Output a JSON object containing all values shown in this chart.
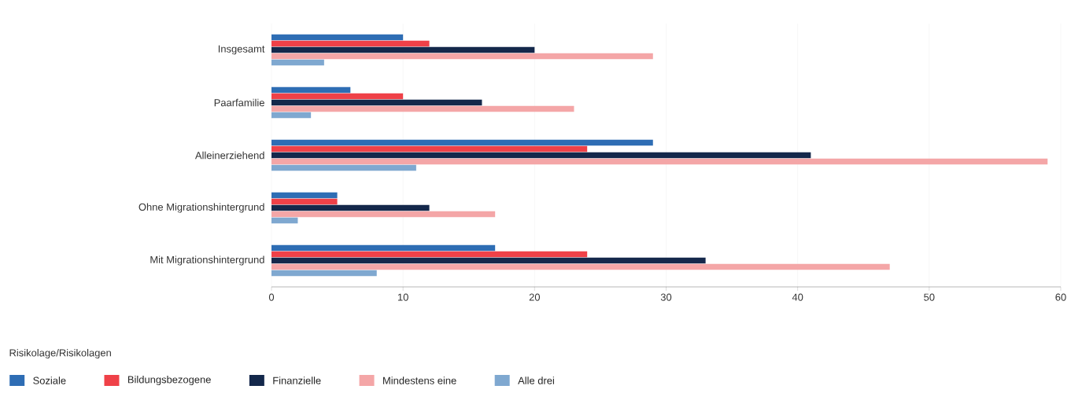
{
  "chart_data": {
    "type": "bar",
    "orientation": "horizontal",
    "categories": [
      "Insgesamt",
      "Paarfamilie",
      "Alleinerziehend",
      "Ohne Migrationshintergrund",
      "Mit Migrationshintergrund"
    ],
    "series": [
      {
        "name": "Soziale",
        "color": "#2e6db4",
        "values": [
          10,
          6,
          29,
          5,
          17
        ]
      },
      {
        "name": "Bildungsbezogene",
        "color": "#ef4148",
        "values": [
          12,
          10,
          24,
          5,
          24
        ]
      },
      {
        "name": "Finanzielle",
        "color": "#14284b",
        "values": [
          20,
          16,
          41,
          12,
          33
        ]
      },
      {
        "name": "Mindestens eine",
        "color": "#f4a6a7",
        "values": [
          29,
          23,
          59,
          17,
          47
        ]
      },
      {
        "name": "Alle drei",
        "color": "#7fa8d0",
        "values": [
          4,
          3,
          11,
          2,
          8
        ]
      }
    ],
    "xlim": [
      0,
      60
    ],
    "xticks": [
      0,
      10,
      20,
      30,
      40,
      50,
      60
    ],
    "grid": "x",
    "legend": "bottom",
    "legend_title": "Risikolage/Risikolagen"
  }
}
